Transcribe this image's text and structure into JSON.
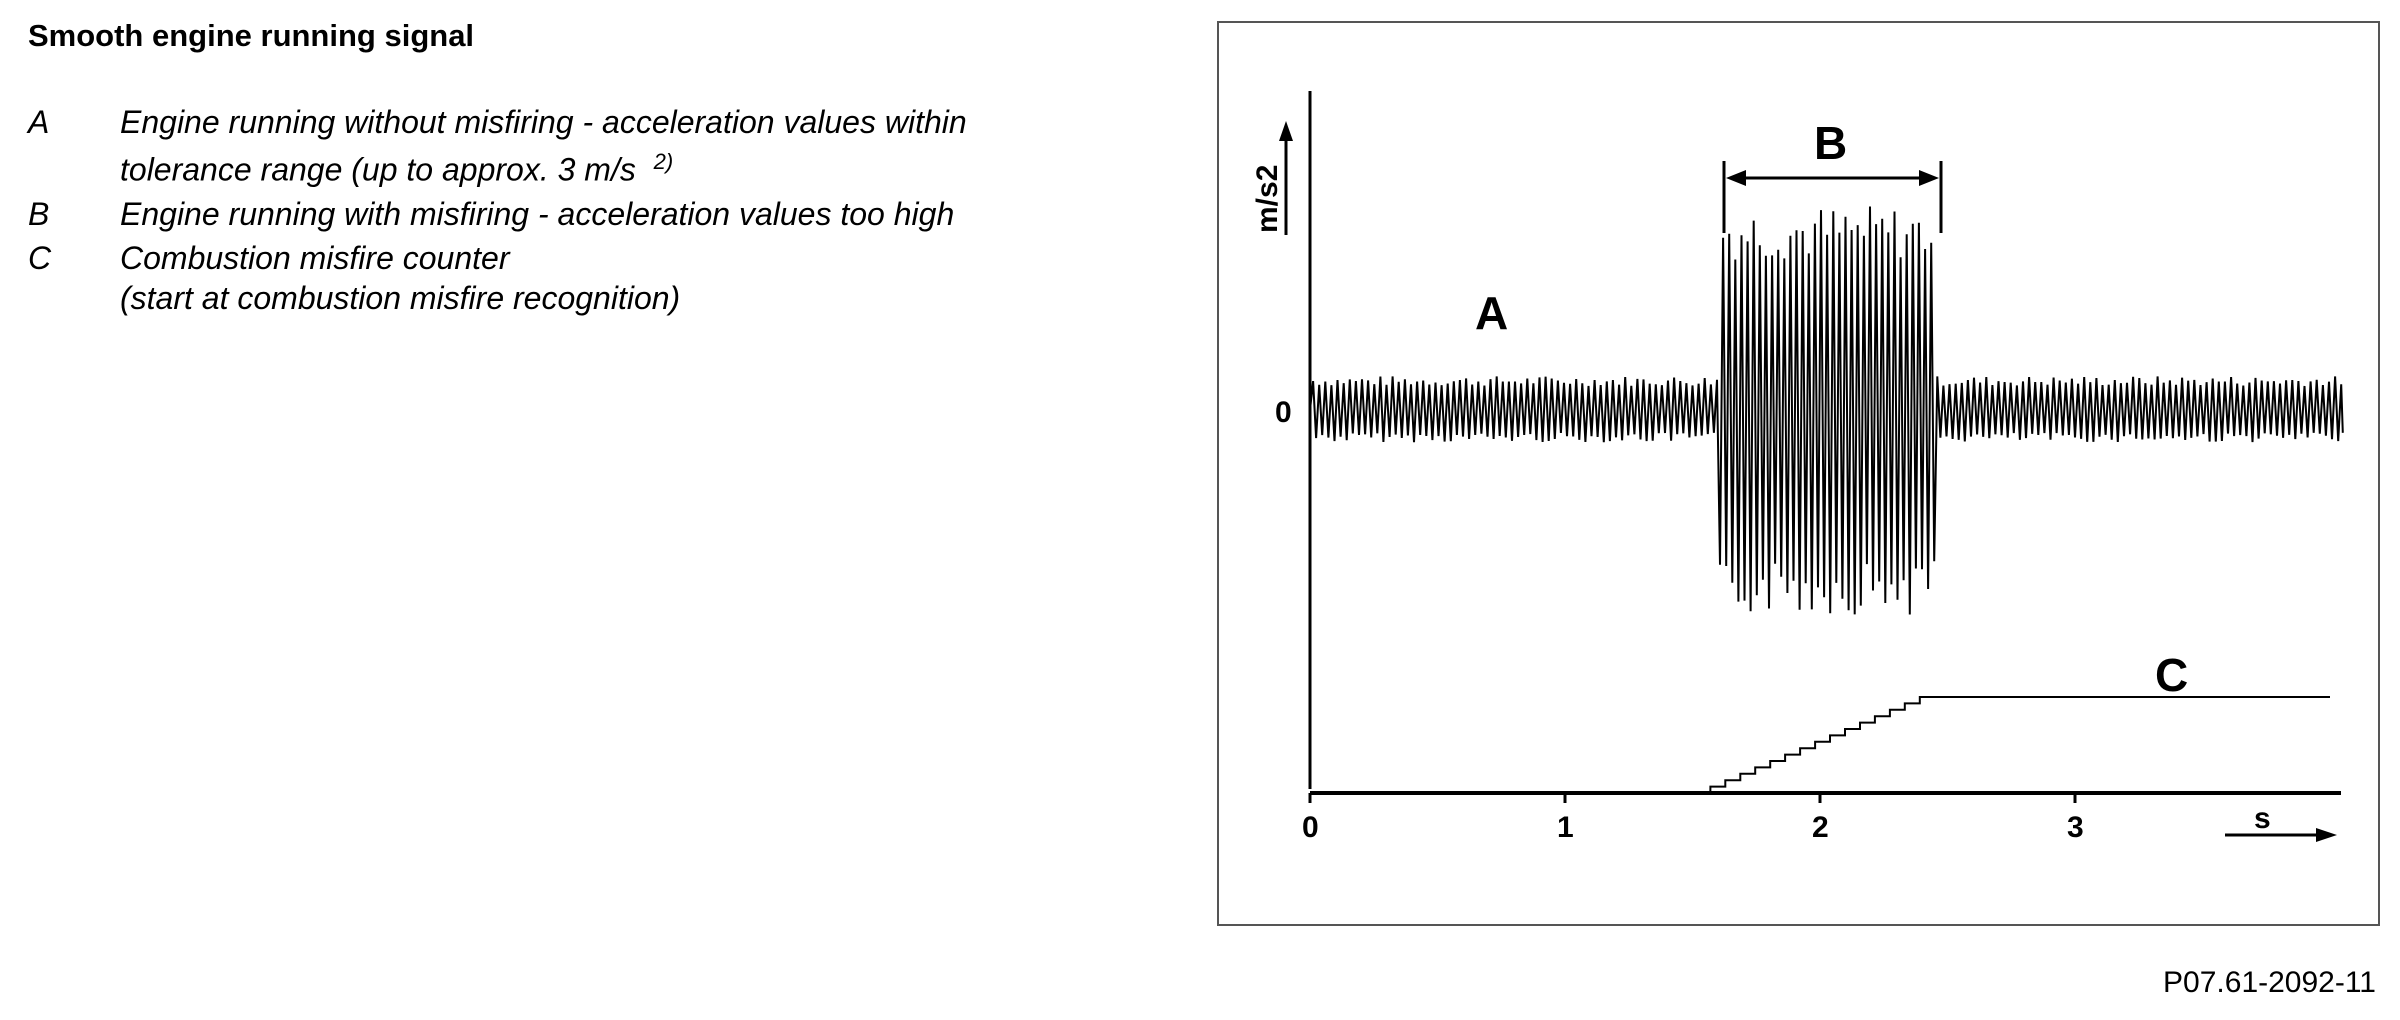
{
  "title": "Smooth engine running signal",
  "legend": [
    {
      "key": "A",
      "lines": [
        "Engine running without misfiring - acceleration values within",
        "tolerance range (up to approx. 3 m/s"
      ],
      "sup": "2)"
    },
    {
      "key": "B",
      "lines": [
        "Engine running with misfiring - acceleration values too high"
      ]
    },
    {
      "key": "C",
      "lines": [
        "Combustion misfire counter",
        "(start at combustion misfire recognition)"
      ]
    }
  ],
  "figure_id": "P07.61-2092-11",
  "chart_data": {
    "type": "line",
    "title": "",
    "xlabel": "s",
    "ylabel": "m/s2",
    "x_ticks": [
      "0",
      "1",
      "2",
      "3"
    ],
    "y_ticks": [
      "0"
    ],
    "xlim": [
      0,
      4
    ],
    "annotations": [
      {
        "label": "A",
        "text": "A",
        "x_range": [
          0,
          1.6
        ]
      },
      {
        "label": "B",
        "text": "B",
        "x_range": [
          1.6,
          2.45
        ]
      },
      {
        "label": "C",
        "text": "C",
        "x_range": [
          2.45,
          4
        ]
      }
    ],
    "series": [
      {
        "id": "signal",
        "description": "oscillating acceleration signal; small amplitude outside B, large amplitude within B",
        "segments": [
          {
            "x_range": [
              0,
              1.6
            ],
            "relative_amplitude": 1
          },
          {
            "x_range": [
              1.6,
              2.45
            ],
            "relative_amplitude": 4
          },
          {
            "x_range": [
              2.45,
              4
            ],
            "relative_amplitude": 1
          }
        ]
      },
      {
        "id": "counter",
        "description": "misfire counter: stepped ramp from about 1.6 s to 2.45 s, then constant"
      }
    ],
    "grid": false,
    "colors": {
      "line": "#000000",
      "frame": "#555555"
    }
  }
}
